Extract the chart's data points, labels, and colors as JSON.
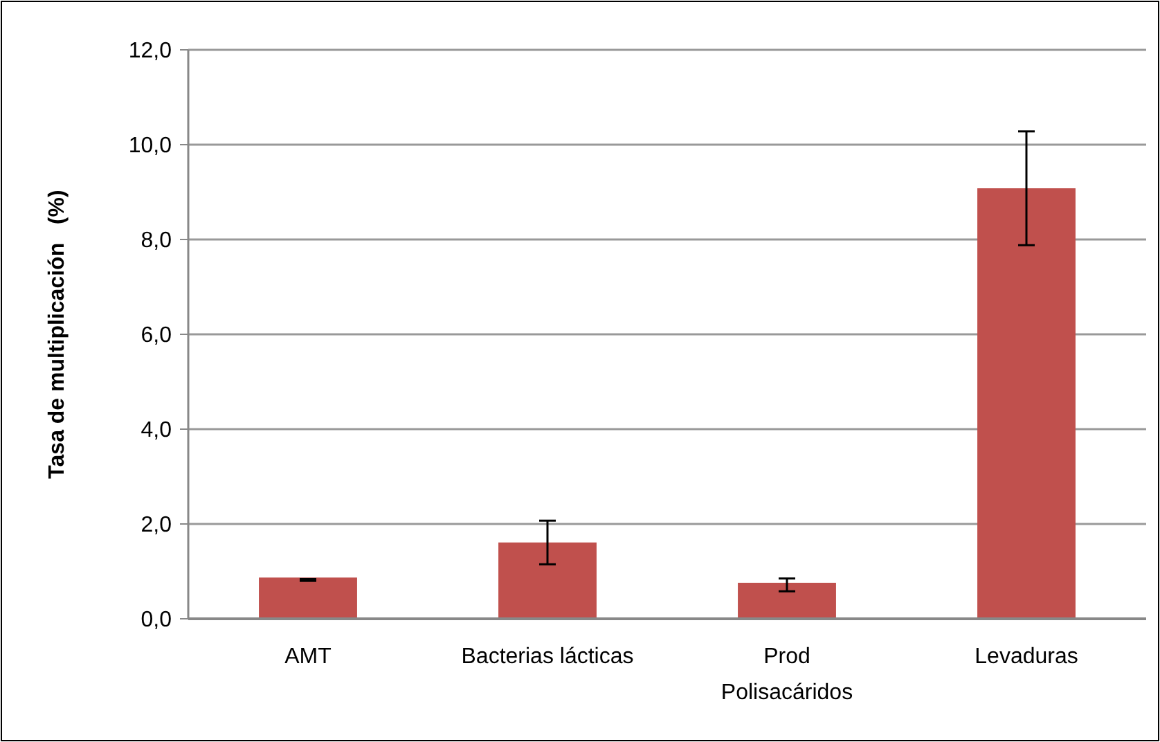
{
  "chart_data": {
    "type": "bar",
    "ylabel": "Tasa de multiplicación   (%)",
    "categories": [
      "AMT",
      "Bacterias lácticas",
      "Prod\nPolisacáridos",
      "Levaduras"
    ],
    "values": [
      0.87,
      1.61,
      0.76,
      9.08
    ],
    "color": "#c0504d",
    "errors": [
      [
        0.8,
        0.84
      ],
      0.46,
      [
        0.58,
        0.85
      ],
      1.2
    ],
    "ylim": [
      0,
      12
    ],
    "yticks": [
      {
        "value": 0,
        "label": "0,0"
      },
      {
        "value": 2,
        "label": "2,0"
      },
      {
        "value": 4,
        "label": "4,0"
      },
      {
        "value": 6,
        "label": "6,0"
      },
      {
        "value": 8,
        "label": "8,0"
      },
      {
        "value": 10,
        "label": "10,0"
      },
      {
        "value": 12,
        "label": "12,0"
      }
    ],
    "grid": "y"
  }
}
